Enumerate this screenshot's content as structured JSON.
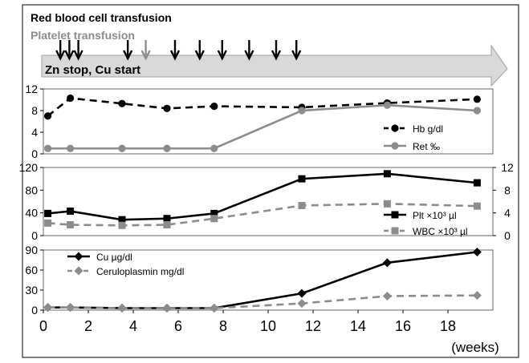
{
  "header": {
    "rbc_label": "Red blood cell transfusion",
    "plt_label": "Platelet transfusion",
    "arrow_label": "Zn stop, Cu start"
  },
  "transfusions": {
    "rbc_weeks": [
      0.4,
      0.8,
      1.2,
      3.4,
      5.5,
      6.6,
      7.6,
      8.8,
      10.0,
      10.9
    ],
    "platelet_weeks": [
      4.2
    ]
  },
  "colors": {
    "black": "#000000",
    "gray": "#8c8c8c",
    "arrow_fill": "#d9d9d9"
  },
  "chart_data": [
    {
      "type": "line",
      "panel": "top",
      "x_unit": "weeks",
      "ylim": [
        0,
        12
      ],
      "yticks": [
        "0",
        "4",
        "8",
        "12"
      ],
      "series": [
        {
          "name": "Hb g/dl",
          "color": "#000000",
          "dashed": true,
          "marker": "circle",
          "x": [
            0.2,
            1.2,
            3.5,
            5.5,
            7.6,
            11.5,
            15.3,
            19.3
          ],
          "y": [
            7.0,
            10.3,
            9.3,
            8.4,
            8.8,
            8.6,
            9.4,
            10.1
          ]
        },
        {
          "name": "Ret ‰",
          "color": "#8c8c8c",
          "dashed": false,
          "marker": "circle",
          "x": [
            0.2,
            1.2,
            3.5,
            5.5,
            7.6,
            11.5,
            15.3,
            19.3
          ],
          "y": [
            1.0,
            1.0,
            1.0,
            1.0,
            1.0,
            8.0,
            9.0,
            8.0
          ]
        }
      ]
    },
    {
      "type": "line",
      "panel": "middle",
      "x_unit": "weeks",
      "ylim": [
        0,
        120
      ],
      "yticks": [
        "0",
        "40",
        "80",
        "120"
      ],
      "y2lim": [
        0,
        12
      ],
      "y2ticks": [
        "0",
        "4",
        "8",
        "12"
      ],
      "series": [
        {
          "name": "Plt ×10³ µl",
          "color": "#000000",
          "dashed": false,
          "marker": "square",
          "axis": "left",
          "x": [
            0.2,
            1.2,
            3.5,
            5.5,
            7.6,
            11.5,
            15.3,
            19.3
          ],
          "y": [
            39,
            43,
            28,
            30,
            39,
            100,
            109,
            93
          ]
        },
        {
          "name": "WBC ×10³ µl",
          "color": "#8c8c8c",
          "dashed": true,
          "marker": "square",
          "axis": "right",
          "x": [
            0.2,
            1.2,
            3.5,
            5.5,
            7.6,
            11.5,
            15.3,
            19.3
          ],
          "y": [
            2.2,
            1.9,
            1.8,
            1.9,
            3.0,
            5.3,
            5.6,
            5.2
          ]
        }
      ]
    },
    {
      "type": "line",
      "panel": "bottom",
      "x_unit": "weeks",
      "ylim": [
        0,
        90
      ],
      "yticks": [
        "0",
        "30",
        "60",
        "90"
      ],
      "xlim": [
        0,
        20
      ],
      "xticks": [
        "0",
        "2",
        "4",
        "6",
        "8",
        "10",
        "12",
        "14",
        "16",
        "18"
      ],
      "xlabel": "(weeks)",
      "series": [
        {
          "name": "Cu µg/dl",
          "color": "#000000",
          "dashed": false,
          "marker": "diamond",
          "x": [
            0.2,
            1.2,
            3.5,
            5.5,
            7.6,
            11.5,
            15.3,
            19.3
          ],
          "y": [
            4,
            4,
            3,
            3,
            3,
            25,
            71,
            87
          ]
        },
        {
          "name": "Ceruloplasmin mg/dl",
          "color": "#8c8c8c",
          "dashed": true,
          "marker": "diamond",
          "x": [
            0.2,
            1.2,
            3.5,
            5.5,
            7.6,
            11.5,
            15.3,
            19.3
          ],
          "y": [
            4,
            4,
            3,
            3,
            3,
            10,
            21,
            22
          ]
        }
      ]
    }
  ]
}
